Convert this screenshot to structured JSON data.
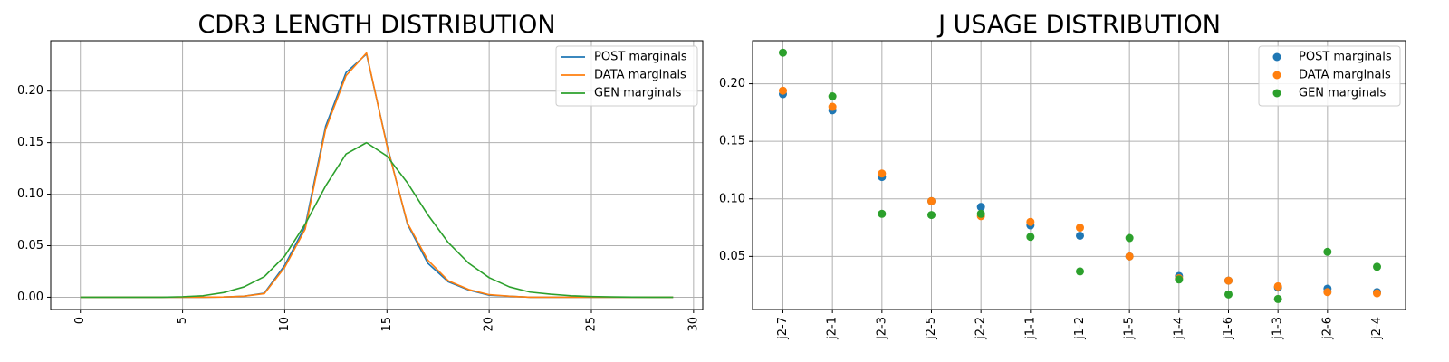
{
  "colors": {
    "post": "#1f77b4",
    "data": "#ff7f0e",
    "gen": "#2ca02c",
    "grid": "#b0b0b0"
  },
  "chart_data": [
    {
      "type": "line",
      "title": "CDR3 LENGTH DISTRIBUTION",
      "xlabel": "",
      "ylabel": "",
      "xlim": [
        -1.45,
        30.45
      ],
      "ylim": [
        -0.0119,
        0.2489
      ],
      "xticks": [
        0,
        5,
        10,
        15,
        20,
        25,
        30
      ],
      "xtick_labels": [
        "0",
        "5",
        "10",
        "15",
        "20",
        "25",
        "30"
      ],
      "xtick_rotation": 90,
      "yticks": [
        0,
        0.05,
        0.1,
        0.15,
        0.2
      ],
      "ytick_labels": [
        "0.00",
        "0.05",
        "0.10",
        "0.15",
        "0.20"
      ],
      "grid": true,
      "legend_position": "top-right",
      "x": [
        0,
        1,
        2,
        3,
        4,
        5,
        6,
        7,
        8,
        9,
        10,
        11,
        12,
        13,
        14,
        15,
        16,
        17,
        18,
        19,
        20,
        21,
        22,
        23,
        24,
        25,
        26,
        27,
        28,
        29
      ],
      "series": [
        {
          "name": "POST marginals",
          "color_key": "post",
          "values": [
            0,
            0,
            0,
            0,
            0,
            0,
            0,
            0.0002,
            0.001,
            0.004,
            0.031,
            0.069,
            0.166,
            0.218,
            0.236,
            0.148,
            0.071,
            0.033,
            0.015,
            0.007,
            0.002,
            0.001,
            0,
            0,
            0,
            0,
            0,
            0,
            0,
            0
          ]
        },
        {
          "name": "DATA marginals",
          "color_key": "data",
          "values": [
            0,
            0,
            0,
            0,
            0,
            0,
            0,
            0.0002,
            0.001,
            0.0035,
            0.029,
            0.066,
            0.163,
            0.215,
            0.237,
            0.147,
            0.072,
            0.036,
            0.016,
            0.0075,
            0.0025,
            0.001,
            0,
            0,
            0,
            0,
            0,
            0,
            0,
            0
          ]
        },
        {
          "name": "GEN marginals",
          "color_key": "gen",
          "values": [
            0,
            0,
            0,
            0,
            0,
            0.0005,
            0.0015,
            0.0045,
            0.01,
            0.02,
            0.04,
            0.071,
            0.108,
            0.139,
            0.15,
            0.137,
            0.111,
            0.08,
            0.053,
            0.033,
            0.019,
            0.01,
            0.005,
            0.003,
            0.0015,
            0.0007,
            0.0003,
            0.0001,
            0,
            0
          ]
        }
      ]
    },
    {
      "type": "scatter",
      "title": "J USAGE DISTRIBUTION",
      "xlabel": "",
      "ylabel": "",
      "ylim": [
        0.0039,
        0.2374
      ],
      "yticks": [
        0.05,
        0.1,
        0.15,
        0.2
      ],
      "ytick_labels": [
        "0.05",
        "0.10",
        "0.15",
        "0.20"
      ],
      "xtick_rotation": 90,
      "grid": true,
      "legend_position": "top-right",
      "categories": [
        "j2-7",
        "j2-1",
        "j2-3",
        "j2-5",
        "j2-2",
        "j1-1",
        "j1-2",
        "j1-5",
        "j1-4",
        "j1-6",
        "j1-3",
        "j2-6",
        "j2-4"
      ],
      "series": [
        {
          "name": "POST marginals",
          "color_key": "post",
          "values": [
            0.191,
            0.177,
            0.119,
            0.098,
            0.093,
            0.077,
            0.068,
            0.05,
            0.033,
            0.029,
            0.023,
            0.022,
            0.019
          ]
        },
        {
          "name": "DATA marginals",
          "color_key": "data",
          "values": [
            0.194,
            0.18,
            0.122,
            0.098,
            0.085,
            0.08,
            0.075,
            0.05,
            0.031,
            0.029,
            0.024,
            0.019,
            0.018
          ]
        },
        {
          "name": "GEN marginals",
          "color_key": "gen",
          "values": [
            0.227,
            0.189,
            0.087,
            0.086,
            0.087,
            0.067,
            0.037,
            0.066,
            0.03,
            0.017,
            0.013,
            0.054,
            0.041
          ]
        }
      ]
    }
  ]
}
